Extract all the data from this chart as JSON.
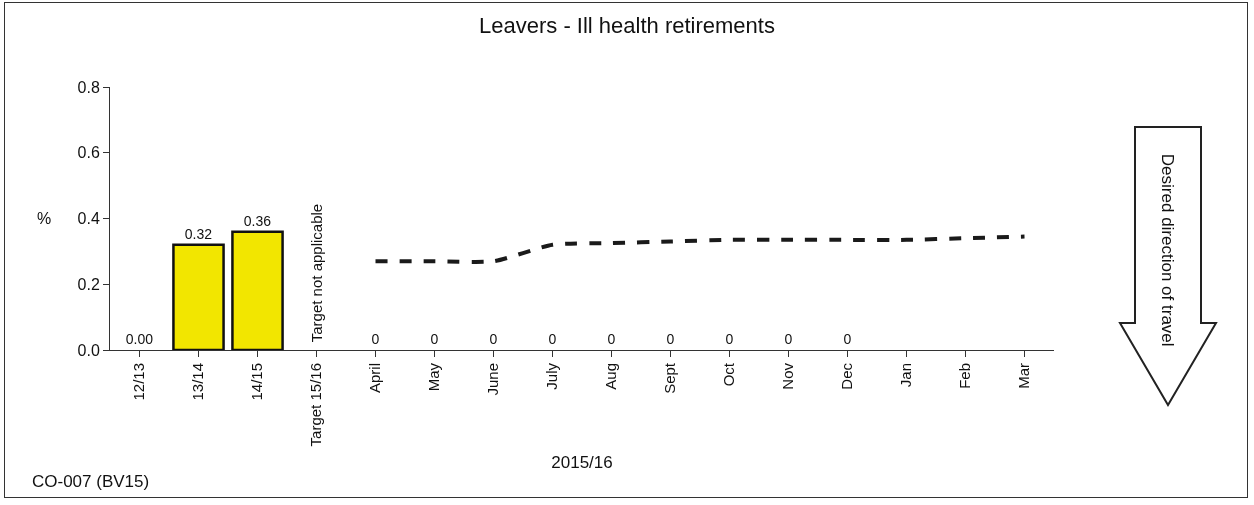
{
  "chart_data": {
    "type": "bar",
    "title": "Leavers - Ill health retirements",
    "xlabel": "2015/16",
    "ylabel": "%",
    "categories": [
      "12/13",
      "13/14",
      "14/15",
      "Target 15/16",
      "April",
      "May",
      "June",
      "July",
      "Aug",
      "Sept",
      "Oct",
      "Nov",
      "Dec",
      "Jan",
      "Feb",
      "Mar"
    ],
    "series": [
      {
        "color": "#f2e600",
        "values": [
          0,
          0.32,
          0.36,
          null,
          0,
          0,
          0,
          0,
          0,
          0,
          0,
          0,
          0,
          null,
          null,
          null
        ],
        "value_labels": [
          "0.00",
          "0.32",
          "0.36",
          null,
          "0",
          "0",
          "0",
          "0",
          "0",
          "0",
          "0",
          "0",
          "0",
          null,
          null,
          null
        ]
      },
      {
        "type": "line",
        "color": "#1a1a1a",
        "line_style": "dashed",
        "marker": "none",
        "values": [
          null,
          null,
          null,
          null,
          0.27,
          0.27,
          0.27,
          0.32,
          0.325,
          0.33,
          0.335,
          0.335,
          0.335,
          0.335,
          0.34,
          0.345
        ]
      }
    ],
    "ylim": [
      0,
      0.8
    ],
    "yticks": [
      {
        "value": 0,
        "label": "0.0"
      },
      {
        "value": 0.2,
        "label": "0.2"
      },
      {
        "value": 0.4,
        "label": "0.4"
      },
      {
        "value": 0.6,
        "label": "0.6"
      },
      {
        "value": 0.8,
        "label": "0.8"
      }
    ],
    "grid": false,
    "annotations": [
      "Target not applicable",
      "CO-007 (BV15)",
      "Desired direction of travel"
    ]
  }
}
